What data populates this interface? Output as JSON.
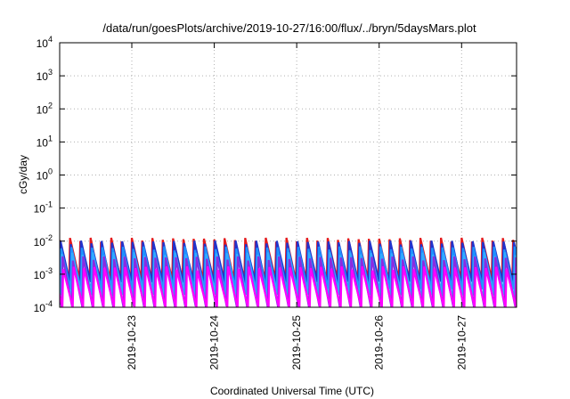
{
  "chart_data": {
    "type": "line",
    "title": "/data/run/goesPlots/archive/2019-10-27/16:00/flux/../bryn/5daysMars.plot",
    "xlabel": "Coordinated Universal Time (UTC)",
    "ylabel": "cGy/day",
    "yscale": "log",
    "ylim": [
      0.0001,
      10000
    ],
    "y_ticks": [
      {
        "mantissa": "10",
        "exp": "-4",
        "value": 0.0001
      },
      {
        "mantissa": "10",
        "exp": "-3",
        "value": 0.001
      },
      {
        "mantissa": "10",
        "exp": "-2",
        "value": 0.01
      },
      {
        "mantissa": "10",
        "exp": "-1",
        "value": 0.1
      },
      {
        "mantissa": "10",
        "exp": "0",
        "value": 1
      },
      {
        "mantissa": "10",
        "exp": "1",
        "value": 10
      },
      {
        "mantissa": "10",
        "exp": "2",
        "value": 100
      },
      {
        "mantissa": "10",
        "exp": "3",
        "value": 1000
      },
      {
        "mantissa": "10",
        "exp": "4",
        "value": 10000
      }
    ],
    "xlim": [
      "2019-10-22T03:00",
      "2019-10-27T16:00"
    ],
    "x_ticks": [
      {
        "label": "2019-10-23",
        "value": "2019-10-23T00:00"
      },
      {
        "label": "2019-10-24",
        "value": "2019-10-24T00:00"
      },
      {
        "label": "2019-10-25",
        "value": "2019-10-25T00:00"
      },
      {
        "label": "2019-10-26",
        "value": "2019-10-26T00:00"
      },
      {
        "label": "2019-10-27",
        "value": "2019-10-27T00:00"
      }
    ],
    "grid": true,
    "legend": "none",
    "series_pattern": {
      "shape": "sawtooth",
      "period_hours": 3,
      "peak": 0.007,
      "trough": 5e-05
    },
    "series": [
      {
        "color": "#e41a1c",
        "peak": 0.011,
        "trough": 0.0006
      },
      {
        "color": "#2233cc",
        "peak": 0.009,
        "trough": 0.0005
      },
      {
        "color": "#1e90ff",
        "peak": 0.006,
        "trough": 0.0003
      },
      {
        "color": "#33aaff",
        "peak": 0.004,
        "trough": 0.0002
      },
      {
        "color": "#8a2be2",
        "peak": 0.003,
        "trough": 9e-05
      },
      {
        "color": "#ff00ff",
        "peak": 0.0015,
        "trough": 5e-05
      }
    ]
  }
}
